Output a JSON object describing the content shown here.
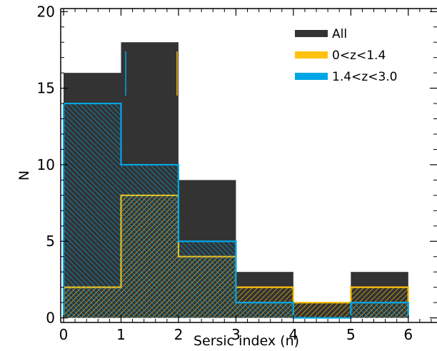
{
  "chart_data": {
    "type": "bar",
    "xlabel": "Sersic index (n)",
    "ylabel": "N",
    "xlim": [
      -0.05,
      6.5
    ],
    "ylim": [
      -0.3,
      20.2
    ],
    "xticks": [
      "0",
      "1",
      "2",
      "3",
      "4",
      "5",
      "6"
    ],
    "yticks": [
      "0",
      "5",
      "10",
      "15",
      "20"
    ],
    "bins": [
      [
        0,
        1
      ],
      [
        1,
        2
      ],
      [
        2,
        3
      ],
      [
        3,
        4
      ],
      [
        4,
        5
      ],
      [
        5,
        6
      ]
    ],
    "series": [
      {
        "name": "All",
        "values": [
          16,
          18,
          9,
          3,
          1,
          3
        ],
        "color": "#333333"
      },
      {
        "name": "0<z<1.4",
        "values": [
          2,
          8,
          4,
          2,
          1,
          2
        ],
        "color": "#FFC20E"
      },
      {
        "name": "1.4<z<3.0",
        "values": [
          14,
          10,
          5,
          1,
          0,
          1
        ],
        "color": "#00A6E6"
      }
    ],
    "legend_position": "top-right",
    "grid": false
  }
}
